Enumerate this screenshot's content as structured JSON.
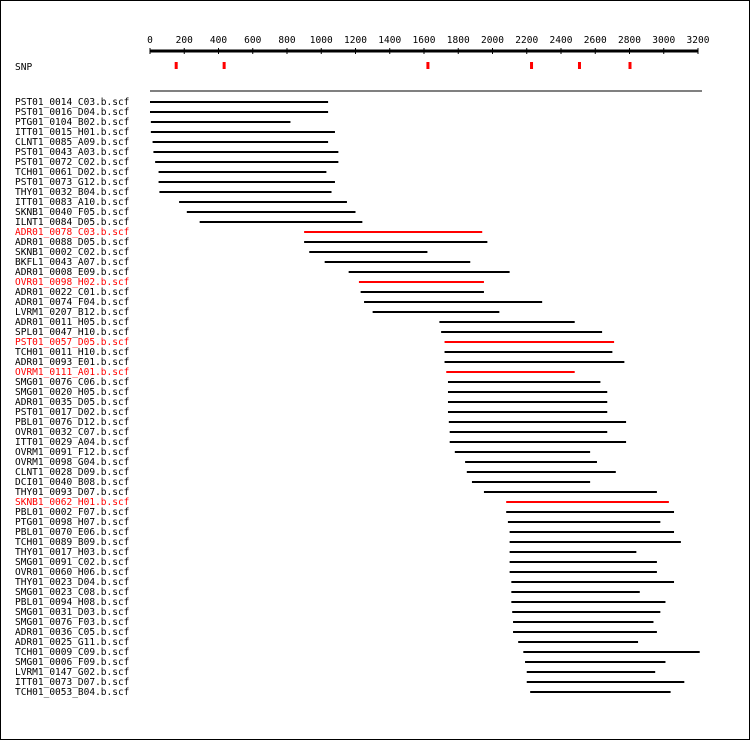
{
  "snp_label": "SNP",
  "colors": {
    "normal": "#000000",
    "highlight": "#ff0000",
    "snp": "#ff0000"
  },
  "axis": {
    "min": 0,
    "max": 3200,
    "ticks": [
      0,
      200,
      400,
      600,
      800,
      1000,
      1200,
      1400,
      1600,
      1800,
      2000,
      2200,
      2400,
      2600,
      2800,
      3000,
      3200
    ]
  },
  "snp_positions": [
    150,
    430,
    1620,
    2225,
    2505,
    2800
  ],
  "reads": [
    {
      "name": "PST01_0014_C03.b.scf",
      "start": 0,
      "end": 1040,
      "highlight": false
    },
    {
      "name": "PST01_0016_D04.b.scf",
      "start": 0,
      "end": 1040,
      "highlight": false
    },
    {
      "name": "PTG01_0104_B02.b.scf",
      "start": 5,
      "end": 820,
      "highlight": false
    },
    {
      "name": "ITT01_0015_H01.b.scf",
      "start": 5,
      "end": 1080,
      "highlight": false
    },
    {
      "name": "CLNT1_0085_A09.b.scf",
      "start": 15,
      "end": 1040,
      "highlight": false
    },
    {
      "name": "PST01_0043_A03.b.scf",
      "start": 20,
      "end": 1100,
      "highlight": false
    },
    {
      "name": "PST01_0072_C02.b.scf",
      "start": 30,
      "end": 1100,
      "highlight": false
    },
    {
      "name": "TCH01_0061_D02.b.scf",
      "start": 50,
      "end": 1030,
      "highlight": false
    },
    {
      "name": "PST01_0073_G12.b.scf",
      "start": 50,
      "end": 1080,
      "highlight": false
    },
    {
      "name": "THY01_0032_B04.b.scf",
      "start": 55,
      "end": 1060,
      "highlight": false
    },
    {
      "name": "ITT01_0083_A10.b.scf",
      "start": 170,
      "end": 1150,
      "highlight": false
    },
    {
      "name": "SKNB1_0040_F05.b.scf",
      "start": 215,
      "end": 1200,
      "highlight": false
    },
    {
      "name": "ILNT1_0084_D05.b.scf",
      "start": 290,
      "end": 1240,
      "highlight": false
    },
    {
      "name": "ADR01_0078_C03.b.scf",
      "start": 900,
      "end": 1940,
      "highlight": true
    },
    {
      "name": "ADR01_0088_D05.b.scf",
      "start": 900,
      "end": 1970,
      "highlight": false
    },
    {
      "name": "SKNB1_0002_C02.b.scf",
      "start": 930,
      "end": 1620,
      "highlight": false
    },
    {
      "name": "BKFL1_0043_A07.b.scf",
      "start": 1020,
      "end": 1870,
      "highlight": false
    },
    {
      "name": "ADR01_0008_E09.b.scf",
      "start": 1160,
      "end": 2100,
      "highlight": false
    },
    {
      "name": "OVR01_0098_H02.b.scf",
      "start": 1220,
      "end": 1950,
      "highlight": true
    },
    {
      "name": "ADR01_0022_C01.b.scf",
      "start": 1230,
      "end": 1950,
      "highlight": false
    },
    {
      "name": "ADR01_0074_F04.b.scf",
      "start": 1250,
      "end": 2290,
      "highlight": false
    },
    {
      "name": "LVRM1_0207_B12.b.scf",
      "start": 1300,
      "end": 2040,
      "highlight": false
    },
    {
      "name": "ADR01_0011_H05.b.scf",
      "start": 1690,
      "end": 2480,
      "highlight": false
    },
    {
      "name": "SPL01_0047_H10.b.scf",
      "start": 1700,
      "end": 2640,
      "highlight": false
    },
    {
      "name": "PST01_0057_D05.b.scf",
      "start": 1720,
      "end": 2710,
      "highlight": true
    },
    {
      "name": "TCH01_0011_H10.b.scf",
      "start": 1720,
      "end": 2700,
      "highlight": false
    },
    {
      "name": "ADR01_0093_E01.b.scf",
      "start": 1720,
      "end": 2770,
      "highlight": false
    },
    {
      "name": "OVRM1_0111_A01.b.scf",
      "start": 1730,
      "end": 2480,
      "highlight": true
    },
    {
      "name": "SMG01_0076_C06.b.scf",
      "start": 1740,
      "end": 2630,
      "highlight": false
    },
    {
      "name": "SMG01_0020_H05.b.scf",
      "start": 1740,
      "end": 2670,
      "highlight": false
    },
    {
      "name": "ADR01_0035_D05.b.scf",
      "start": 1740,
      "end": 2670,
      "highlight": false
    },
    {
      "name": "PST01_0017_D02.b.scf",
      "start": 1740,
      "end": 2670,
      "highlight": false
    },
    {
      "name": "PBL01_0076_D12.b.scf",
      "start": 1745,
      "end": 2780,
      "highlight": false
    },
    {
      "name": "OVR01_0032_C07.b.scf",
      "start": 1750,
      "end": 2670,
      "highlight": false
    },
    {
      "name": "ITT01_0029_A04.b.scf",
      "start": 1750,
      "end": 2780,
      "highlight": false
    },
    {
      "name": "OVRM1_0091_F12.b.scf",
      "start": 1780,
      "end": 2570,
      "highlight": false
    },
    {
      "name": "OVRM1_0098_G04.b.scf",
      "start": 1840,
      "end": 2610,
      "highlight": false
    },
    {
      "name": "CLNT1_0028_D09.b.scf",
      "start": 1850,
      "end": 2720,
      "highlight": false
    },
    {
      "name": "DCI01_0040_B08.b.scf",
      "start": 1880,
      "end": 2570,
      "highlight": false
    },
    {
      "name": "THY01_0093_D07.b.scf",
      "start": 1950,
      "end": 2960,
      "highlight": false
    },
    {
      "name": "SKNB1_0062_H01.b.scf",
      "start": 2080,
      "end": 3030,
      "highlight": true
    },
    {
      "name": "PBL01_0002_F07.b.scf",
      "start": 2080,
      "end": 3060,
      "highlight": false
    },
    {
      "name": "PTG01_0098_H07.b.scf",
      "start": 2090,
      "end": 2980,
      "highlight": false
    },
    {
      "name": "PBL01_0070_E06.b.scf",
      "start": 2100,
      "end": 3060,
      "highlight": false
    },
    {
      "name": "TCH01_0089_B09.b.scf",
      "start": 2100,
      "end": 3100,
      "highlight": false
    },
    {
      "name": "THY01_0017_H03.b.scf",
      "start": 2100,
      "end": 2840,
      "highlight": false
    },
    {
      "name": "SMG01_0091_C02.b.scf",
      "start": 2100,
      "end": 2960,
      "highlight": false
    },
    {
      "name": "OVR01_0060_H06.b.scf",
      "start": 2100,
      "end": 2960,
      "highlight": false
    },
    {
      "name": "THY01_0023_D04.b.scf",
      "start": 2110,
      "end": 3060,
      "highlight": false
    },
    {
      "name": "SMG01_0023_C08.b.scf",
      "start": 2110,
      "end": 2860,
      "highlight": false
    },
    {
      "name": "PBL01_0094_H08.b.scf",
      "start": 2110,
      "end": 3010,
      "highlight": false
    },
    {
      "name": "SMG01_0031_D03.b.scf",
      "start": 2115,
      "end": 2980,
      "highlight": false
    },
    {
      "name": "SMG01_0076_F03.b.scf",
      "start": 2120,
      "end": 2940,
      "highlight": false
    },
    {
      "name": "ADR01_0036_C05.b.scf",
      "start": 2120,
      "end": 2960,
      "highlight": false
    },
    {
      "name": "ADR01_0025_G11.b.scf",
      "start": 2150,
      "end": 2850,
      "highlight": false
    },
    {
      "name": "TCH01_0009_C09.b.scf",
      "start": 2180,
      "end": 3210,
      "highlight": false
    },
    {
      "name": "SMG01_0006_F09.b.scf",
      "start": 2190,
      "end": 3010,
      "highlight": false
    },
    {
      "name": "LVRM1_0147_G02.b.scf",
      "start": 2200,
      "end": 2950,
      "highlight": false
    },
    {
      "name": "ITT01_0073_D07.b.scf",
      "start": 2200,
      "end": 3120,
      "highlight": false
    },
    {
      "name": "TCH01_0053_B04.b.scf",
      "start": 2220,
      "end": 3040,
      "highlight": false
    }
  ]
}
